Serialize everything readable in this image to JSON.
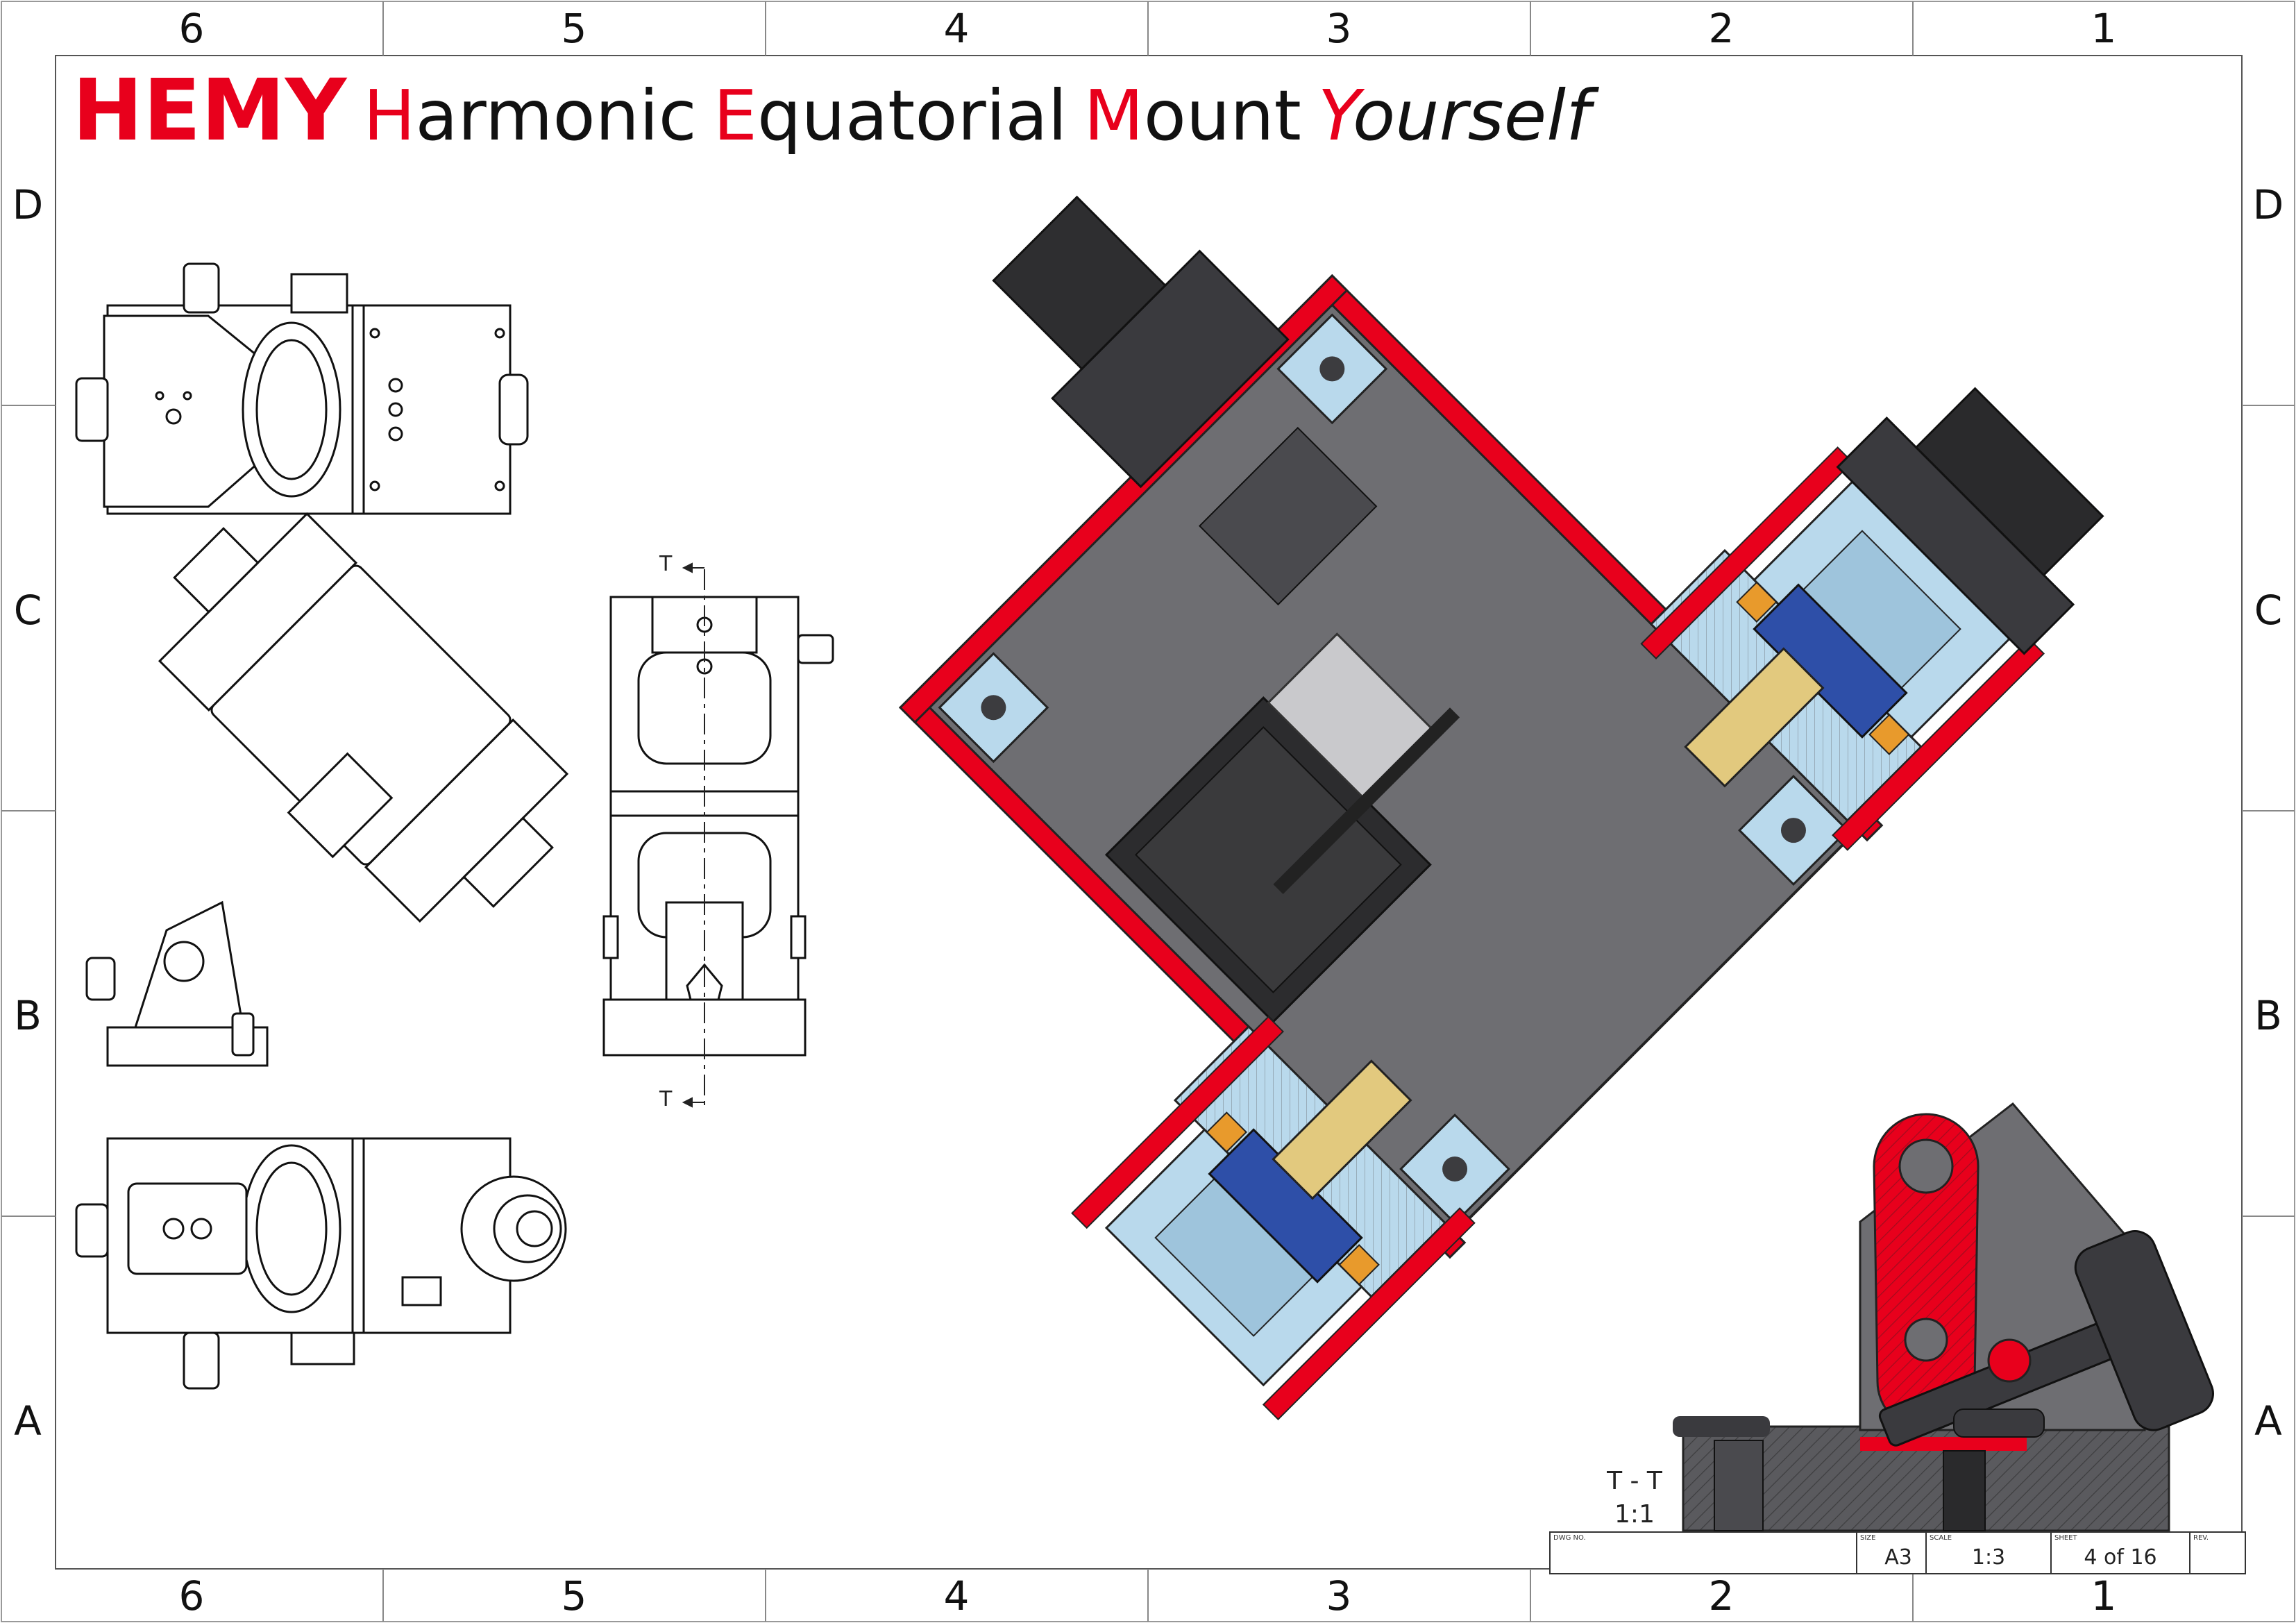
{
  "title": {
    "brand": "HEMY",
    "h": "H",
    "h_rest": "armonic",
    "e": "E",
    "e_rest": "quatorial",
    "m": "M",
    "m_rest": "ount",
    "y": "Y",
    "y_rest": "ourself"
  },
  "zones": {
    "columns": [
      "6",
      "5",
      "4",
      "3",
      "2",
      "1"
    ],
    "rows": [
      "D",
      "C",
      "B",
      "A"
    ]
  },
  "section": {
    "name": "T - T",
    "scale": "1:1",
    "cut_mark": "T"
  },
  "title_block": {
    "dwg_no_label": "DWG NO.",
    "size_label": "SIZE",
    "size": "A3",
    "scale_label": "SCALE",
    "scale": "1:3",
    "sheet_label": "SHEET",
    "sheet": "4 of 16",
    "rev_label": "REV.",
    "rev": ""
  },
  "colors": {
    "accent_red": "#e8001c",
    "body_grey": "#6e6e72",
    "dark_grey": "#3c3c3f",
    "light_blue": "#b9d9ec",
    "gold": "#e2c97e",
    "blue": "#2e4fa8",
    "orange": "#e89a2c"
  }
}
